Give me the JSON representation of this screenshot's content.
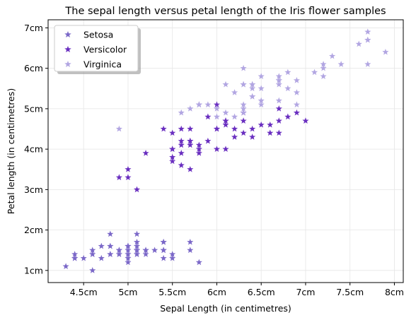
{
  "chart_data": {
    "type": "scatter",
    "title": "The sepal length versus petal length of the Iris flower samples",
    "xlabel": "Sepal Length (in centimetres)",
    "ylabel": "Petal length (in centimetres)",
    "xlim": [
      4.1,
      8.1
    ],
    "ylim": [
      0.7,
      7.2
    ],
    "xticks": [
      4.5,
      5.0,
      5.5,
      6.0,
      6.5,
      7.0,
      7.5,
      8.0
    ],
    "xtick_labels": [
      "4.5cm",
      "5cm",
      "5.5cm",
      "6cm",
      "6.5cm",
      "7cm",
      "7.5cm",
      "8cm"
    ],
    "yticks": [
      1,
      2,
      3,
      4,
      5,
      6,
      7
    ],
    "ytick_labels": [
      "1cm",
      "2cm",
      "3cm",
      "4cm",
      "5cm",
      "6cm",
      "7cm"
    ],
    "grid": true,
    "legend_position": "top-left",
    "marker": "star",
    "series": [
      {
        "name": "Setosa",
        "color": "#7b68c8",
        "points": [
          [
            5.1,
            1.4
          ],
          [
            4.9,
            1.4
          ],
          [
            4.7,
            1.3
          ],
          [
            4.6,
            1.5
          ],
          [
            5.0,
            1.4
          ],
          [
            5.4,
            1.7
          ],
          [
            4.6,
            1.4
          ],
          [
            5.0,
            1.5
          ],
          [
            4.4,
            1.4
          ],
          [
            4.9,
            1.5
          ],
          [
            5.4,
            1.5
          ],
          [
            4.8,
            1.6
          ],
          [
            4.8,
            1.4
          ],
          [
            4.3,
            1.1
          ],
          [
            5.8,
            1.2
          ],
          [
            5.7,
            1.5
          ],
          [
            5.4,
            1.3
          ],
          [
            5.1,
            1.4
          ],
          [
            5.7,
            1.7
          ],
          [
            5.1,
            1.5
          ],
          [
            5.4,
            1.7
          ],
          [
            5.1,
            1.5
          ],
          [
            4.6,
            1.0
          ],
          [
            5.1,
            1.7
          ],
          [
            4.8,
            1.9
          ],
          [
            5.0,
            1.6
          ],
          [
            5.0,
            1.6
          ],
          [
            5.2,
            1.5
          ],
          [
            5.2,
            1.4
          ],
          [
            4.7,
            1.6
          ],
          [
            4.8,
            1.6
          ],
          [
            5.4,
            1.5
          ],
          [
            5.2,
            1.5
          ],
          [
            5.5,
            1.4
          ],
          [
            4.9,
            1.5
          ],
          [
            5.0,
            1.2
          ],
          [
            5.5,
            1.3
          ],
          [
            4.9,
            1.4
          ],
          [
            4.4,
            1.3
          ],
          [
            5.1,
            1.5
          ],
          [
            5.0,
            1.3
          ],
          [
            4.5,
            1.3
          ],
          [
            4.4,
            1.3
          ],
          [
            5.0,
            1.6
          ],
          [
            5.1,
            1.9
          ],
          [
            4.8,
            1.4
          ],
          [
            5.1,
            1.6
          ],
          [
            4.6,
            1.4
          ],
          [
            5.3,
            1.5
          ],
          [
            5.0,
            1.4
          ]
        ]
      },
      {
        "name": "Versicolor",
        "color": "#6a2fc0",
        "points": [
          [
            7.0,
            4.7
          ],
          [
            6.4,
            4.5
          ],
          [
            6.9,
            4.9
          ],
          [
            5.5,
            4.0
          ],
          [
            6.5,
            4.6
          ],
          [
            5.7,
            4.5
          ],
          [
            6.3,
            4.7
          ],
          [
            4.9,
            3.3
          ],
          [
            6.6,
            4.6
          ],
          [
            5.2,
            3.9
          ],
          [
            5.0,
            3.5
          ],
          [
            5.9,
            4.2
          ],
          [
            6.0,
            4.0
          ],
          [
            6.1,
            4.7
          ],
          [
            5.6,
            3.6
          ],
          [
            6.7,
            4.4
          ],
          [
            5.6,
            4.5
          ],
          [
            5.8,
            4.1
          ],
          [
            6.2,
            4.5
          ],
          [
            5.6,
            3.9
          ],
          [
            5.9,
            4.8
          ],
          [
            6.1,
            4.0
          ],
          [
            6.3,
            4.9
          ],
          [
            6.1,
            4.7
          ],
          [
            6.4,
            4.3
          ],
          [
            6.6,
            4.4
          ],
          [
            6.8,
            4.8
          ],
          [
            6.7,
            5.0
          ],
          [
            6.0,
            4.5
          ],
          [
            5.7,
            3.5
          ],
          [
            5.5,
            3.8
          ],
          [
            5.5,
            3.7
          ],
          [
            5.8,
            3.9
          ],
          [
            6.0,
            5.1
          ],
          [
            5.4,
            4.5
          ],
          [
            6.0,
            4.5
          ],
          [
            6.7,
            4.7
          ],
          [
            6.3,
            4.4
          ],
          [
            5.6,
            4.1
          ],
          [
            5.5,
            4.0
          ],
          [
            5.5,
            4.4
          ],
          [
            6.1,
            4.6
          ],
          [
            5.8,
            4.0
          ],
          [
            5.0,
            3.3
          ],
          [
            5.6,
            4.2
          ],
          [
            5.7,
            4.2
          ],
          [
            5.7,
            4.2
          ],
          [
            6.2,
            4.3
          ],
          [
            5.1,
            3.0
          ],
          [
            5.7,
            4.1
          ]
        ]
      },
      {
        "name": "Virginica",
        "color": "#b2a6e2",
        "points": [
          [
            6.3,
            6.0
          ],
          [
            5.8,
            5.1
          ],
          [
            7.1,
            5.9
          ],
          [
            6.3,
            5.6
          ],
          [
            6.5,
            5.8
          ],
          [
            7.6,
            6.6
          ],
          [
            4.9,
            4.5
          ],
          [
            7.3,
            6.3
          ],
          [
            6.7,
            5.8
          ],
          [
            7.2,
            6.1
          ],
          [
            6.5,
            5.1
          ],
          [
            6.4,
            5.3
          ],
          [
            6.8,
            5.5
          ],
          [
            5.7,
            5.0
          ],
          [
            5.8,
            5.1
          ],
          [
            6.4,
            5.3
          ],
          [
            6.5,
            5.5
          ],
          [
            7.7,
            6.7
          ],
          [
            7.7,
            6.9
          ],
          [
            6.0,
            5.0
          ],
          [
            6.9,
            5.7
          ],
          [
            5.6,
            4.9
          ],
          [
            7.7,
            6.7
          ],
          [
            6.3,
            4.9
          ],
          [
            6.7,
            5.7
          ],
          [
            7.2,
            6.0
          ],
          [
            6.2,
            4.8
          ],
          [
            6.1,
            4.9
          ],
          [
            6.4,
            5.6
          ],
          [
            7.2,
            5.8
          ],
          [
            7.4,
            6.1
          ],
          [
            7.9,
            6.4
          ],
          [
            6.4,
            5.6
          ],
          [
            6.3,
            5.1
          ],
          [
            6.1,
            5.6
          ],
          [
            7.7,
            6.1
          ],
          [
            6.3,
            5.6
          ],
          [
            6.4,
            5.5
          ],
          [
            6.0,
            4.8
          ],
          [
            6.9,
            5.4
          ],
          [
            6.7,
            5.6
          ],
          [
            6.9,
            5.1
          ],
          [
            5.8,
            5.1
          ],
          [
            6.8,
            5.9
          ],
          [
            6.7,
            5.7
          ],
          [
            6.7,
            5.2
          ],
          [
            6.3,
            5.0
          ],
          [
            6.5,
            5.2
          ],
          [
            6.2,
            5.4
          ],
          [
            5.9,
            5.1
          ]
        ]
      }
    ]
  }
}
